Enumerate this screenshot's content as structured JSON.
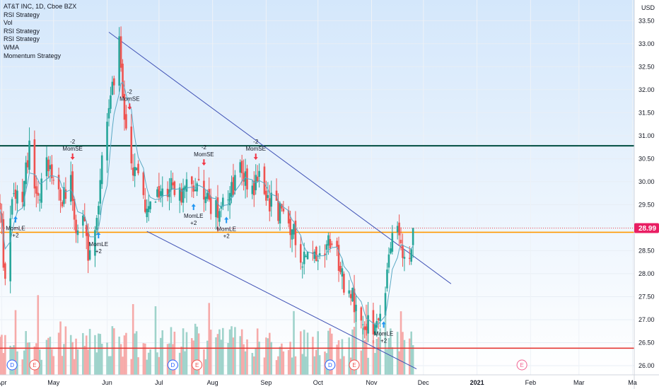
{
  "symbol": {
    "title": "AT&T INC, 1D, Cboe BZX",
    "indicators": [
      "RSI Strategy",
      "Vol",
      "RSI Strategy",
      "RSI Strategy",
      "WMA",
      "Momentum Strategy"
    ]
  },
  "price_scale": {
    "currency": "USD",
    "last_price": "28.99",
    "last_price_color": "#e91e63"
  },
  "colors": {
    "up": "#26a69a",
    "down": "#ef5350",
    "vol_up": "#9fd3cb",
    "vol_down": "#f6aaa9",
    "wma": "#5aa9c4",
    "channel": "#3f51b5",
    "resistance_line": "#004d40",
    "support_line": "#ff9800",
    "low_line": "#e53935",
    "signal_buy": "#2196f3",
    "signal_sell": "#f23645",
    "background_top": "#d7e9fb",
    "background_bottom": "#ffffff"
  },
  "chart_data": {
    "type": "candlestick",
    "x_axis_ticks": [
      "Apr",
      "May",
      "Jun",
      "Jul",
      "Aug",
      "Sep",
      "Oct",
      "Nov",
      "Dec",
      "2021",
      "Feb",
      "Mar",
      "Ma"
    ],
    "x_axis_tick_dates": [
      "2020-04-01",
      "2020-05-01",
      "2020-06-01",
      "2020-07-01",
      "2020-08-01",
      "2020-09-01",
      "2020-10-01",
      "2020-11-01",
      "2020-12-01",
      "2021-01-01",
      "2021-02-01",
      "2021-03-01",
      "2021-04-01"
    ],
    "x_range": [
      "2020-03-31",
      "2021-04-02"
    ],
    "y_range": [
      25.8,
      33.95
    ],
    "y_ticks": [
      26.0,
      26.5,
      27.0,
      27.5,
      28.0,
      28.5,
      29.0,
      29.5,
      30.0,
      30.5,
      31.0,
      31.5,
      32.0,
      32.5,
      33.0,
      33.5
    ],
    "horizontal_lines": [
      {
        "name": "resistance",
        "price": 30.78
      },
      {
        "name": "support",
        "price": 28.9
      },
      {
        "name": "low",
        "price": 26.38
      }
    ],
    "trend_lines": [
      {
        "name": "channel-upper",
        "from": [
          "2020-06-02",
          33.25
        ],
        "to": [
          "2020-12-17",
          27.78
        ]
      },
      {
        "name": "channel-lower",
        "from": [
          "2020-06-24",
          28.92
        ],
        "to": [
          "2020-11-27",
          25.93
        ]
      }
    ],
    "price_anchors": [
      [
        "2020-03-31",
        29.5
      ],
      [
        "2020-04-03",
        27.7
      ],
      [
        "2020-04-07",
        29.8
      ],
      [
        "2020-04-13",
        29.6
      ],
      [
        "2020-04-17",
        30.9
      ],
      [
        "2020-04-22",
        29.6
      ],
      [
        "2020-04-28",
        30.5
      ],
      [
        "2020-05-01",
        30.1
      ],
      [
        "2020-05-05",
        29.6
      ],
      [
        "2020-05-11",
        30.1
      ],
      [
        "2020-05-14",
        28.9
      ],
      [
        "2020-05-18",
        29.2
      ],
      [
        "2020-05-21",
        28.3
      ],
      [
        "2020-05-26",
        29.0
      ],
      [
        "2020-05-29",
        30.8
      ],
      [
        "2020-06-03",
        31.8
      ],
      [
        "2020-06-08",
        32.9
      ],
      [
        "2020-06-11",
        31.3
      ],
      [
        "2020-06-15",
        30.4
      ],
      [
        "2020-06-19",
        30.1
      ],
      [
        "2020-06-24",
        29.3
      ],
      [
        "2020-06-29",
        29.6
      ],
      [
        "2020-07-02",
        29.8
      ],
      [
        "2020-07-08",
        29.9
      ],
      [
        "2020-07-14",
        29.7
      ],
      [
        "2020-07-20",
        29.9
      ],
      [
        "2020-07-23",
        30.2
      ],
      [
        "2020-07-28",
        29.6
      ],
      [
        "2020-08-03",
        29.4
      ],
      [
        "2020-08-07",
        29.7
      ],
      [
        "2020-08-12",
        29.9
      ],
      [
        "2020-08-17",
        30.3
      ],
      [
        "2020-08-24",
        29.9
      ],
      [
        "2020-08-28",
        30.1
      ],
      [
        "2020-09-01",
        29.7
      ],
      [
        "2020-09-08",
        29.4
      ],
      [
        "2020-09-14",
        29.1
      ],
      [
        "2020-09-18",
        28.8
      ],
      [
        "2020-09-22",
        28.4
      ],
      [
        "2020-09-28",
        28.3
      ],
      [
        "2020-10-02",
        28.5
      ],
      [
        "2020-10-08",
        28.8
      ],
      [
        "2020-10-12",
        28.5
      ],
      [
        "2020-10-16",
        27.8
      ],
      [
        "2020-10-20",
        27.7
      ],
      [
        "2020-10-23",
        27.1
      ],
      [
        "2020-10-28",
        26.8
      ],
      [
        "2020-11-02",
        26.9
      ],
      [
        "2020-11-06",
        26.9
      ],
      [
        "2020-11-09",
        27.4
      ],
      [
        "2020-11-11",
        28.4
      ],
      [
        "2020-11-16",
        29.0
      ],
      [
        "2020-11-19",
        28.6
      ],
      [
        "2020-11-23",
        28.5
      ],
      [
        "2020-11-25",
        28.99
      ]
    ],
    "volume_range": [
      0,
      50000000
    ],
    "signals": [
      {
        "date": "2020-04-09",
        "type": "long",
        "label": "MomLE",
        "qty": "+2"
      },
      {
        "date": "2020-05-12",
        "type": "short",
        "label": "MomSE",
        "qty": "-2"
      },
      {
        "date": "2020-05-27",
        "type": "long",
        "label": "MomLE",
        "qty": "+2"
      },
      {
        "date": "2020-06-14",
        "type": "short",
        "label": "MomSE",
        "qty": "-2"
      },
      {
        "date": "2020-07-21",
        "type": "long",
        "label": "MomLE",
        "qty": "+2"
      },
      {
        "date": "2020-07-27",
        "type": "short",
        "label": "MomSE",
        "qty": "-2"
      },
      {
        "date": "2020-08-09",
        "type": "long",
        "label": "MomLE",
        "qty": "+2"
      },
      {
        "date": "2020-08-26",
        "type": "short",
        "label": "MomSE",
        "qty": "-2"
      },
      {
        "date": "2020-11-08",
        "type": "long",
        "label": "MomLE",
        "qty": "+2"
      }
    ],
    "events": [
      {
        "date": "2020-04-07",
        "label": "D",
        "kind": "dividend"
      },
      {
        "date": "2020-04-20",
        "label": "E",
        "kind": "earnings"
      },
      {
        "date": "2020-07-09",
        "label": "D",
        "kind": "dividend"
      },
      {
        "date": "2020-07-23",
        "label": "E",
        "kind": "earnings"
      },
      {
        "date": "2020-10-08",
        "label": "D",
        "kind": "dividend"
      },
      {
        "date": "2020-10-22",
        "label": "E",
        "kind": "earnings"
      },
      {
        "date": "2021-01-27",
        "label": "E",
        "kind": "earnings-future"
      }
    ]
  }
}
